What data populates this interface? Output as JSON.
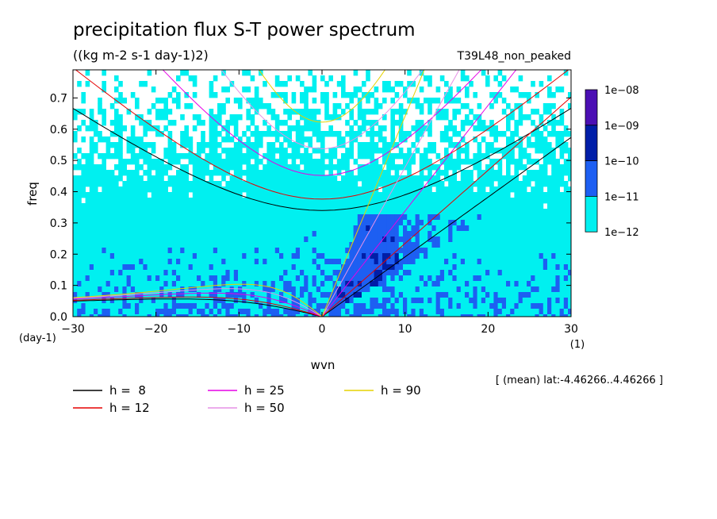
{
  "chart_data": {
    "type": "heatmap",
    "title": "precipitation flux S-T power spectrum",
    "subtitle": "((kg m-2 s-1 day-1)2)",
    "experiment": "T39L48_non_peaked",
    "xlabel": "wvn",
    "xunit": "(1)",
    "ylabel": "freq",
    "yunit": "(day-1)",
    "xlim": [
      -30,
      30
    ],
    "ylim": [
      0,
      0.79
    ],
    "xticks": [
      -30,
      -20,
      -10,
      0,
      10,
      20,
      30
    ],
    "yticks": [
      0.0,
      0.1,
      0.2,
      0.3,
      0.4,
      0.5,
      0.6,
      0.7
    ],
    "colorbar": {
      "scale": "log",
      "labels": [
        "1e-08",
        "1e-09",
        "1e-10",
        "1e-11",
        "1e-12"
      ],
      "colors": [
        "#4b0fb4",
        "#001ea8",
        "#1d5ff2",
        "#00f0f0"
      ]
    },
    "annotation": "[ (mean) lat:-4.46266..4.46266 ]",
    "dispersion_curves": {
      "series": [
        {
          "name": "h =  8",
          "h": 8,
          "color": "#000000"
        },
        {
          "name": "h = 12",
          "h": 12,
          "color": "#e60000"
        },
        {
          "name": "h = 25",
          "h": 25,
          "color": "#e600e6"
        },
        {
          "name": "h = 50",
          "h": 50,
          "color": "#e690e6"
        },
        {
          "name": "h = 90",
          "h": 90,
          "color": "#e6d200"
        }
      ],
      "families": [
        "kelvin",
        "rossby",
        "inertia_gravity_n1"
      ]
    }
  }
}
